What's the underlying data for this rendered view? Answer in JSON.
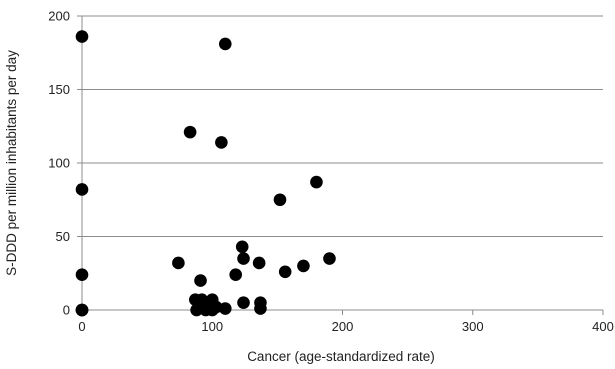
{
  "chart_data": {
    "type": "scatter",
    "title": "",
    "xlabel": "Cancer (age-standardized rate)",
    "ylabel": "S-DDD per million inhabitants per day",
    "xlim": [
      0,
      400
    ],
    "ylim": [
      0,
      200
    ],
    "x_ticks": [
      "0",
      "100",
      "200",
      "300",
      "400"
    ],
    "y_ticks": [
      "0",
      "50",
      "100",
      "150",
      "200"
    ],
    "grid": "horizontal",
    "legend": "none",
    "marker_color": "#000000",
    "gridline_color": "#8c8c8c",
    "points": [
      {
        "x": 0,
        "y": 186
      },
      {
        "x": 0,
        "y": 82
      },
      {
        "x": 0,
        "y": 24
      },
      {
        "x": 0,
        "y": 0
      },
      {
        "x": 0,
        "y": 0
      },
      {
        "x": 0,
        "y": 0
      },
      {
        "x": 74,
        "y": 32
      },
      {
        "x": 83,
        "y": 121
      },
      {
        "x": 87,
        "y": 7
      },
      {
        "x": 88,
        "y": 0
      },
      {
        "x": 91,
        "y": 20
      },
      {
        "x": 92,
        "y": 7
      },
      {
        "x": 93,
        "y": 2
      },
      {
        "x": 95,
        "y": 0
      },
      {
        "x": 97,
        "y": 5
      },
      {
        "x": 100,
        "y": 7
      },
      {
        "x": 100,
        "y": 0
      },
      {
        "x": 103,
        "y": 2
      },
      {
        "x": 107,
        "y": 114
      },
      {
        "x": 110,
        "y": 181
      },
      {
        "x": 110,
        "y": 1
      },
      {
        "x": 118,
        "y": 24
      },
      {
        "x": 123,
        "y": 43
      },
      {
        "x": 124,
        "y": 35
      },
      {
        "x": 124,
        "y": 5
      },
      {
        "x": 136,
        "y": 32
      },
      {
        "x": 137,
        "y": 5
      },
      {
        "x": 137,
        "y": 1
      },
      {
        "x": 152,
        "y": 75
      },
      {
        "x": 156,
        "y": 26
      },
      {
        "x": 170,
        "y": 30
      },
      {
        "x": 180,
        "y": 87
      },
      {
        "x": 190,
        "y": 35
      }
    ]
  }
}
